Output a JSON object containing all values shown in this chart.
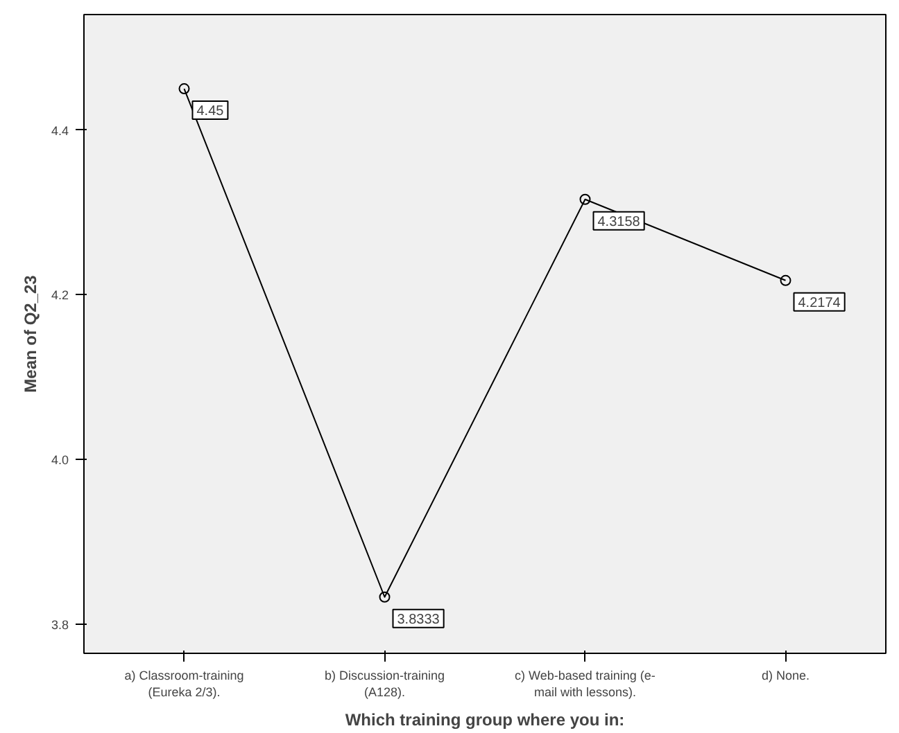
{
  "chart_data": {
    "type": "line",
    "xlabel": "Which training group where you in:",
    "ylabel": "Mean of Q2_23",
    "categories": [
      "a) Classroom-training\n(Eureka 2/3).",
      "b) Discussion-training\n(A128).",
      "c) Web-based training (e-\nmail with lessons).",
      "d) None."
    ],
    "series": [
      {
        "color": "#000000",
        "values": [
          4.45,
          3.8333,
          4.3158,
          4.2174
        ]
      }
    ],
    "ylim": [
      3.765,
      4.54
    ],
    "yticks": [
      {
        "value": 3.8,
        "label": "3.8"
      },
      {
        "value": 4.0,
        "label": "4.0"
      },
      {
        "value": 4.2,
        "label": "4.2"
      },
      {
        "value": 4.4,
        "label": "4.4"
      }
    ],
    "data_labels": true,
    "marker": "circle",
    "line_style": "solid",
    "grid": false
  }
}
